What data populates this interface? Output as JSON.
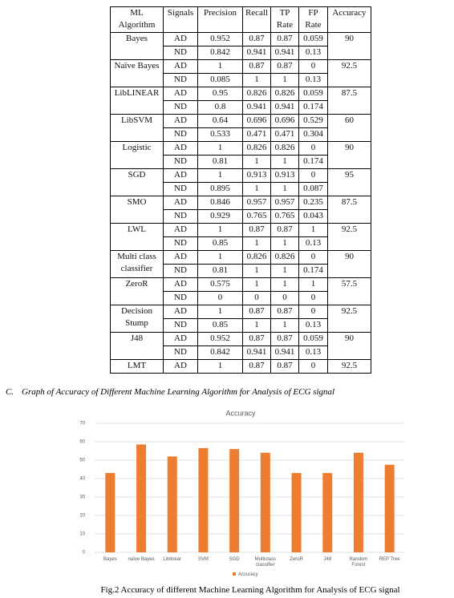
{
  "table": {
    "header": [
      "ML Algorithm",
      "Signals",
      "Precision",
      "Recall",
      "TP Rate",
      "FP Rate",
      "Accuracy"
    ],
    "groups": [
      {
        "algorithm": "Bayes",
        "accuracy": "90",
        "rows": [
          [
            "AD",
            "0.952",
            "0.87",
            "0.87",
            "0.059"
          ],
          [
            "ND",
            "0.842",
            "0.941",
            "0.941",
            "0.13"
          ]
        ]
      },
      {
        "algorithm": "Naïve Bayes",
        "accuracy": "92.5",
        "rows": [
          [
            "AD",
            "1",
            "0.87",
            "0.87",
            "0"
          ],
          [
            "ND",
            "0.085",
            "1",
            "1",
            "0.13"
          ]
        ]
      },
      {
        "algorithm": "LibLINEAR",
        "accuracy": "87.5",
        "rows": [
          [
            "AD",
            "0.95",
            "0.826",
            "0.826",
            "0.059"
          ],
          [
            "ND",
            "0.8",
            "0.941",
            "0.941",
            "0.174"
          ]
        ]
      },
      {
        "algorithm": "LibSVM",
        "accuracy": "60",
        "rows": [
          [
            "AD",
            "0.64",
            "0.696",
            "0.696",
            "0.529"
          ],
          [
            "ND",
            "0.533",
            "0.471",
            "0.471",
            "0.304"
          ]
        ]
      },
      {
        "algorithm": "Logistic",
        "accuracy": "90",
        "rows": [
          [
            "AD",
            "1",
            "0.826",
            "0.826",
            "0"
          ],
          [
            "ND",
            "0.81",
            "1",
            "1",
            "0.174"
          ]
        ]
      },
      {
        "algorithm": "SGD",
        "accuracy": "95",
        "rows": [
          [
            "AD",
            "1",
            "0.913",
            "0.913",
            "0"
          ],
          [
            "ND",
            "0.895",
            "1",
            "1",
            "0.087"
          ]
        ]
      },
      {
        "algorithm": "SMO",
        "accuracy": "87.5",
        "rows": [
          [
            "AD",
            "0.846",
            "0.957",
            "0.957",
            "0.235"
          ],
          [
            "ND",
            "0.929",
            "0.765",
            "0.765",
            "0.043"
          ]
        ]
      },
      {
        "algorithm": "LWL",
        "accuracy": "92.5",
        "rows": [
          [
            "AD",
            "1",
            "0.87",
            "0.87",
            "1"
          ],
          [
            "ND",
            "0.85",
            "1",
            "1",
            "0.13"
          ]
        ]
      },
      {
        "algorithm": "Multi class classifier",
        "accuracy": "90",
        "rows": [
          [
            "AD",
            "1",
            "0.826",
            "0.826",
            "0"
          ],
          [
            "ND",
            "0.81",
            "1",
            "1",
            "0.174"
          ]
        ]
      },
      {
        "algorithm": "ZeroR",
        "accuracy": "57.5",
        "rows": [
          [
            "AD",
            "0.575",
            "1",
            "1",
            "1"
          ],
          [
            "ND",
            "0",
            "0",
            "0",
            "0"
          ]
        ]
      },
      {
        "algorithm": "Decision Stump",
        "accuracy": "92.5",
        "rows": [
          [
            "AD",
            "1",
            "0.87",
            "0.87",
            "0"
          ],
          [
            "ND",
            "0.85",
            "1",
            "1",
            "0.13"
          ]
        ]
      },
      {
        "algorithm": "J48",
        "accuracy": "90",
        "rows": [
          [
            "AD",
            "0.952",
            "0.87",
            "0.87",
            "0.059"
          ],
          [
            "ND",
            "0.842",
            "0.941",
            "0.941",
            "0.13"
          ]
        ]
      },
      {
        "algorithm": "LMT",
        "accuracy": "92.5",
        "rows": [
          [
            "AD",
            "1",
            "0.87",
            "0.87",
            "0"
          ]
        ]
      }
    ]
  },
  "section": {
    "label": "C.",
    "title": "Graph of Accuracy of Different Machine Learning Algorithm for Analysis of ECG signal"
  },
  "chart_data": {
    "type": "bar",
    "title": "Accuracy",
    "categories": [
      "Bayes",
      "naïve Bayes",
      "Liblinear",
      "SVM",
      "SGD",
      "Multiclass classifier",
      "ZeroR",
      "J48",
      "Random Forest",
      "REP Tree"
    ],
    "series": [
      {
        "name": "Accuracy",
        "color": "#ed7d31",
        "values": [
          43,
          58.5,
          52,
          56.5,
          56,
          54,
          43,
          43,
          54,
          47.5
        ]
      }
    ],
    "ylim": [
      0,
      70
    ],
    "yticks": [
      0,
      10,
      20,
      30,
      40,
      50,
      60,
      70
    ],
    "grid": true,
    "legend": "bottom"
  },
  "caption": "Fig.2 Accuracy of different Machine Learning Algorithm for Analysis of ECG signal"
}
